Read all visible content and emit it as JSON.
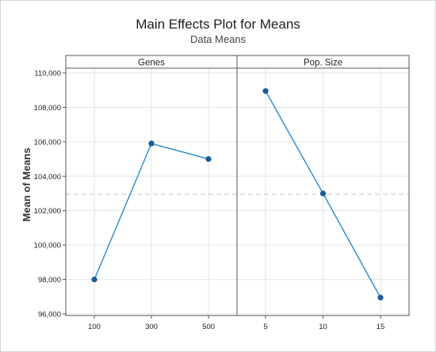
{
  "chart_data": {
    "type": "line",
    "title": "Main Effects Plot for Means",
    "subtitle": "Data Means",
    "ylabel": "Mean of Means",
    "ylim": [
      96000,
      110000
    ],
    "yticks": [
      96000,
      98000,
      100000,
      102000,
      104000,
      106000,
      108000,
      110000
    ],
    "ytick_labels": [
      "96,000",
      "98,000",
      "100,000",
      "102,000",
      "104,000",
      "106,000",
      "108,000",
      "110,000"
    ],
    "grand_mean": 102950,
    "grid": true,
    "line_color": "#2a8ac8",
    "marker_color": "#1a5a9e",
    "mean_line_color": "#c8c8c8",
    "panels": [
      {
        "name": "Genes",
        "categories": [
          "100",
          "300",
          "500"
        ],
        "values": [
          98000,
          105900,
          105000
        ]
      },
      {
        "name": "Pop. Size",
        "categories": [
          "5",
          "10",
          "15"
        ],
        "values": [
          108950,
          103000,
          96950
        ]
      }
    ]
  }
}
